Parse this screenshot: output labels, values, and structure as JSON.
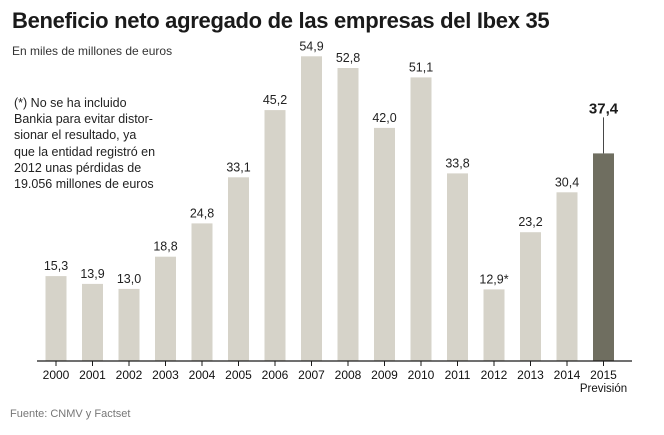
{
  "title": "Beneficio neto agregado de las empresas del Ibex 35",
  "subtitle": "En miles de millones de euros",
  "note": "(*) No se ha incluido\nBankia para evitar distor-\nsionar el resultado, ya\nque la entidad registró en\n2012 unas pérdidas de\n19.056 millones de euros",
  "source": "Fuente: CNMV y Factset",
  "colors": {
    "bar": "#d6d3c9",
    "highlight": "#6f6e60",
    "axis": "#1a1a1a",
    "text": "#222222"
  },
  "chart_data": {
    "type": "bar",
    "title": "Beneficio neto agregado de las empresas del Ibex 35",
    "ylabel": "En miles de millones de euros",
    "xlabel": "",
    "ylim": [
      0,
      60
    ],
    "grid": false,
    "categories": [
      "2000",
      "2001",
      "2002",
      "2003",
      "2004",
      "2005",
      "2006",
      "2007",
      "2008",
      "2009",
      "2010",
      "2011",
      "2012",
      "2013",
      "2014",
      "2015"
    ],
    "values": [
      15.3,
      13.9,
      13.0,
      18.8,
      24.8,
      33.1,
      45.2,
      54.9,
      52.8,
      42.0,
      51.1,
      33.8,
      12.9,
      23.2,
      30.4,
      37.4
    ],
    "labels": [
      "15,3",
      "13,9",
      "13,0",
      "18,8",
      "24,8",
      "33,1",
      "45,2",
      "54,9",
      "52,8",
      "42,0",
      "51,1",
      "33,8",
      "12,9*",
      "23,2",
      "30,4",
      "37,4"
    ],
    "highlight_index": 15,
    "highlight_sublabel": "Previsión"
  }
}
